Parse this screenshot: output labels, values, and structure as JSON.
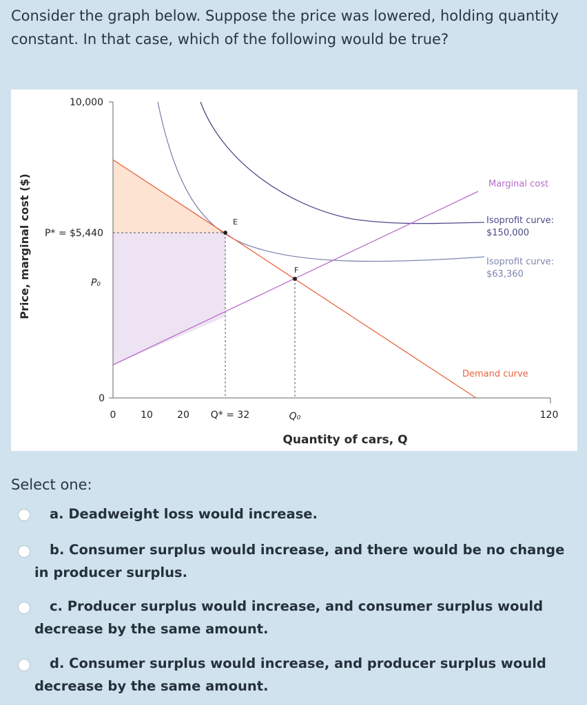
{
  "question": {
    "text": "Consider the graph below. Suppose the price was lowered, holding quantity constant. In that case, which of the following would be true?"
  },
  "figure": {
    "y_axis_label": "Price, marginal cost ($)",
    "x_axis_label": "Quantity of cars, Q",
    "y_ticks": [
      "10,000",
      "P* = $5,440",
      "P₀",
      "0"
    ],
    "x_ticks": [
      "0",
      "10",
      "20",
      "Q* = 32",
      "Q₀",
      "120"
    ],
    "point_labels": [
      "E",
      "F"
    ],
    "curve_labels": {
      "marginal_cost": "Marginal cost",
      "isoprofit_high": "Isoprofit curve:\n$150,000",
      "isoprofit_low": "Isoprofit curve:\n$63,360",
      "demand": "Demand curve"
    },
    "colors": {
      "demand": "#e8643c",
      "marginal_cost": "#b76cc8",
      "isoprofit_high": "#4a4a8a",
      "isoprofit_low": "#7e86ad",
      "consumer_surplus": "#fde3d2",
      "producer_surplus": "#eee3f3"
    }
  },
  "prompt": {
    "select_label": "Select one:"
  },
  "options": [
    {
      "letter": "a",
      "text": "a. Deadweight loss would increase."
    },
    {
      "letter": "b",
      "text": "b. Consumer surplus would increase, and there would be no change in producer surplus."
    },
    {
      "letter": "c",
      "text": "c. Producer surplus would increase, and consumer surplus would decrease by the same amount."
    },
    {
      "letter": "d",
      "text": "d. Consumer surplus would increase, and producer surplus would decrease by the same amount."
    }
  ]
}
